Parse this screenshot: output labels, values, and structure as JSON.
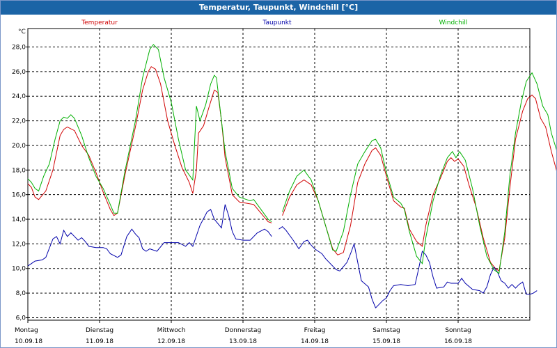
{
  "window": {
    "title": "Temperatur, Taupunkt, Windchill [°C]"
  },
  "chart_data": {
    "type": "line",
    "title": "Temperatur, Taupunkt, Windchill [°C]",
    "ylabel": "°C",
    "ylim": [
      5.8,
      29.5
    ],
    "yticks": [
      6,
      8,
      10,
      12,
      14,
      16,
      18,
      20,
      22,
      24,
      26,
      28
    ],
    "ytick_labels": [
      "6,0",
      "8,0",
      "10,0",
      "12,0",
      "14,0",
      "16,0",
      "18,0",
      "20,0",
      "22,0",
      "24,0",
      "26,0",
      "28,0"
    ],
    "xlim": [
      0,
      7
    ],
    "days": [
      {
        "day": "Montag",
        "date": "10.09.18"
      },
      {
        "day": "Dienstag",
        "date": "11.09.18"
      },
      {
        "day": "Mittwoch",
        "date": "12.09.18"
      },
      {
        "day": "Donnerstag",
        "date": "13.09.18"
      },
      {
        "day": "Freitag",
        "date": "14.09.18"
      },
      {
        "day": "Samstag",
        "date": "15.09.18"
      },
      {
        "day": "Sonntag",
        "date": "16.09.18"
      }
    ],
    "grid": true,
    "legend_placement": "top",
    "series": [
      {
        "name": "Temperatur",
        "color": "#d00000",
        "points": [
          [
            0.0,
            16.9
          ],
          [
            0.05,
            16.6
          ],
          [
            0.1,
            15.8
          ],
          [
            0.15,
            15.6
          ],
          [
            0.25,
            16.3
          ],
          [
            0.35,
            18.0
          ],
          [
            0.45,
            20.8
          ],
          [
            0.5,
            21.3
          ],
          [
            0.55,
            21.5
          ],
          [
            0.65,
            21.2
          ],
          [
            0.75,
            20.0
          ],
          [
            0.85,
            19.2
          ],
          [
            0.95,
            17.8
          ],
          [
            1.05,
            16.2
          ],
          [
            1.15,
            14.8
          ],
          [
            1.2,
            14.3
          ],
          [
            1.25,
            14.5
          ],
          [
            1.35,
            17.5
          ],
          [
            1.5,
            21.5
          ],
          [
            1.6,
            24.5
          ],
          [
            1.68,
            26.0
          ],
          [
            1.72,
            26.4
          ],
          [
            1.78,
            26.2
          ],
          [
            1.85,
            25.0
          ],
          [
            1.95,
            22.0
          ],
          [
            2.05,
            20.0
          ],
          [
            2.15,
            18.2
          ],
          [
            2.25,
            17.0
          ],
          [
            2.3,
            16.1
          ],
          [
            2.35,
            18.0
          ],
          [
            2.38,
            21.0
          ],
          [
            2.45,
            21.6
          ],
          [
            2.52,
            23.0
          ],
          [
            2.6,
            24.5
          ],
          [
            2.65,
            24.3
          ],
          [
            2.7,
            22.0
          ],
          [
            2.75,
            19.0
          ],
          [
            2.85,
            16.0
          ],
          [
            2.95,
            15.4
          ],
          [
            3.05,
            15.3
          ],
          [
            3.15,
            15.2
          ],
          [
            3.25,
            14.5
          ],
          [
            3.35,
            13.8
          ],
          [
            3.4,
            13.7
          ],
          null,
          [
            3.55,
            14.3
          ],
          [
            3.65,
            15.8
          ],
          [
            3.75,
            16.8
          ],
          [
            3.85,
            17.2
          ],
          [
            3.95,
            16.8
          ],
          [
            4.05,
            15.5
          ],
          [
            4.15,
            13.5
          ],
          [
            4.25,
            11.6
          ],
          [
            4.32,
            11.1
          ],
          [
            4.4,
            11.3
          ],
          [
            4.5,
            13.5
          ],
          [
            4.6,
            17.0
          ],
          [
            4.7,
            18.5
          ],
          [
            4.8,
            19.6
          ],
          [
            4.85,
            19.8
          ],
          [
            4.92,
            19.2
          ],
          [
            5.0,
            17.5
          ],
          [
            5.1,
            15.5
          ],
          [
            5.2,
            15.0
          ],
          [
            5.25,
            14.9
          ],
          [
            5.32,
            13.2
          ],
          [
            5.42,
            12.2
          ],
          [
            5.5,
            11.8
          ],
          [
            5.55,
            13.5
          ],
          [
            5.65,
            16.0
          ],
          [
            5.75,
            17.3
          ],
          [
            5.85,
            18.7
          ],
          [
            5.9,
            19.0
          ],
          [
            5.95,
            18.7
          ],
          [
            6.0,
            18.9
          ],
          [
            6.08,
            18.3
          ],
          [
            6.15,
            16.8
          ],
          [
            6.25,
            15.0
          ],
          [
            6.35,
            12.5
          ],
          [
            6.45,
            10.5
          ],
          [
            6.52,
            10.0
          ],
          [
            6.57,
            9.8
          ],
          [
            6.65,
            12.5
          ],
          [
            6.72,
            16.5
          ],
          [
            6.8,
            20.5
          ],
          [
            6.9,
            22.8
          ],
          [
            6.97,
            23.8
          ],
          [
            7.03,
            24.1
          ],
          [
            7.08,
            23.8
          ],
          [
            7.15,
            22.2
          ],
          [
            7.22,
            21.5
          ],
          [
            7.3,
            19.5
          ],
          [
            7.38,
            17.8
          ],
          [
            7.45,
            17.0
          ]
        ]
      },
      {
        "name": "Taupunkt",
        "color": "#0000aa",
        "points": [
          [
            0.0,
            10.2
          ],
          [
            0.05,
            10.4
          ],
          [
            0.1,
            10.6
          ],
          [
            0.2,
            10.7
          ],
          [
            0.25,
            10.9
          ],
          [
            0.35,
            12.4
          ],
          [
            0.4,
            12.6
          ],
          [
            0.45,
            12.0
          ],
          [
            0.5,
            13.1
          ],
          [
            0.55,
            12.6
          ],
          [
            0.6,
            12.9
          ],
          [
            0.65,
            12.6
          ],
          [
            0.7,
            12.3
          ],
          [
            0.75,
            12.5
          ],
          [
            0.8,
            12.2
          ],
          [
            0.85,
            11.8
          ],
          [
            0.95,
            11.7
          ],
          [
            1.05,
            11.7
          ],
          [
            1.1,
            11.6
          ],
          [
            1.15,
            11.2
          ],
          [
            1.25,
            10.9
          ],
          [
            1.3,
            11.1
          ],
          [
            1.38,
            12.6
          ],
          [
            1.45,
            13.2
          ],
          [
            1.5,
            12.8
          ],
          [
            1.55,
            12.5
          ],
          [
            1.6,
            11.6
          ],
          [
            1.65,
            11.4
          ],
          [
            1.7,
            11.6
          ],
          [
            1.8,
            11.4
          ],
          [
            1.9,
            12.1
          ],
          [
            2.0,
            12.1
          ],
          [
            2.1,
            12.1
          ],
          [
            2.2,
            11.8
          ],
          [
            2.25,
            12.1
          ],
          [
            2.3,
            11.8
          ],
          [
            2.4,
            13.5
          ],
          [
            2.5,
            14.6
          ],
          [
            2.55,
            14.8
          ],
          [
            2.6,
            14.0
          ],
          [
            2.7,
            13.3
          ],
          [
            2.75,
            15.2
          ],
          [
            2.8,
            14.3
          ],
          [
            2.85,
            13.0
          ],
          [
            2.9,
            12.4
          ],
          [
            3.0,
            12.3
          ],
          [
            3.1,
            12.3
          ],
          [
            3.2,
            12.9
          ],
          [
            3.3,
            13.2
          ],
          [
            3.35,
            13.0
          ],
          [
            3.4,
            12.6
          ],
          null,
          [
            3.5,
            13.2
          ],
          [
            3.55,
            13.4
          ],
          [
            3.6,
            13.1
          ],
          [
            3.7,
            12.3
          ],
          [
            3.78,
            11.6
          ],
          [
            3.85,
            12.2
          ],
          [
            3.9,
            12.3
          ],
          [
            3.95,
            11.9
          ],
          [
            4.0,
            11.6
          ],
          [
            4.05,
            11.4
          ],
          [
            4.1,
            11.2
          ],
          [
            4.15,
            10.8
          ],
          [
            4.25,
            10.2
          ],
          [
            4.3,
            9.9
          ],
          [
            4.35,
            9.8
          ],
          [
            4.45,
            10.5
          ],
          [
            4.5,
            11.2
          ],
          [
            4.55,
            12.0
          ],
          [
            4.6,
            10.5
          ],
          [
            4.65,
            9.0
          ],
          [
            4.75,
            8.5
          ],
          [
            4.8,
            7.5
          ],
          [
            4.85,
            6.8
          ],
          [
            4.95,
            7.4
          ],
          [
            5.0,
            7.6
          ],
          [
            5.05,
            8.2
          ],
          [
            5.1,
            8.6
          ],
          [
            5.2,
            8.7
          ],
          [
            5.3,
            8.6
          ],
          [
            5.4,
            8.7
          ],
          [
            5.45,
            10.0
          ],
          [
            5.5,
            11.4
          ],
          [
            5.55,
            11.1
          ],
          [
            5.6,
            10.5
          ],
          [
            5.65,
            9.3
          ],
          [
            5.7,
            8.4
          ],
          [
            5.8,
            8.5
          ],
          [
            5.85,
            8.9
          ],
          [
            5.9,
            8.8
          ],
          [
            6.0,
            8.8
          ],
          [
            6.05,
            9.2
          ],
          [
            6.1,
            8.8
          ],
          [
            6.2,
            8.3
          ],
          [
            6.3,
            8.2
          ],
          [
            6.35,
            8.0
          ],
          [
            6.4,
            8.5
          ],
          [
            6.45,
            9.5
          ],
          [
            6.5,
            10.1
          ],
          [
            6.55,
            9.7
          ],
          [
            6.6,
            9.0
          ],
          [
            6.65,
            8.8
          ],
          [
            6.7,
            8.4
          ],
          [
            6.75,
            8.7
          ],
          [
            6.8,
            8.4
          ],
          [
            6.85,
            8.7
          ],
          [
            6.9,
            8.9
          ],
          [
            6.95,
            7.9
          ],
          [
            7.0,
            7.9
          ],
          [
            7.05,
            8.0
          ],
          [
            7.1,
            8.2
          ]
        ]
      },
      {
        "name": "Windchill",
        "color": "#00b000",
        "points": [
          [
            0.0,
            17.3
          ],
          [
            0.05,
            17.0
          ],
          [
            0.1,
            16.5
          ],
          [
            0.15,
            16.3
          ],
          [
            0.22,
            17.5
          ],
          [
            0.3,
            18.5
          ],
          [
            0.38,
            20.5
          ],
          [
            0.45,
            22.0
          ],
          [
            0.5,
            22.3
          ],
          [
            0.55,
            22.2
          ],
          [
            0.6,
            22.5
          ],
          [
            0.65,
            22.2
          ],
          [
            0.75,
            20.8
          ],
          [
            0.85,
            19.0
          ],
          [
            0.95,
            17.5
          ],
          [
            1.05,
            16.5
          ],
          [
            1.15,
            15.2
          ],
          [
            1.2,
            14.5
          ],
          [
            1.25,
            14.5
          ],
          [
            1.35,
            17.8
          ],
          [
            1.5,
            22.0
          ],
          [
            1.6,
            25.5
          ],
          [
            1.7,
            27.8
          ],
          [
            1.75,
            28.2
          ],
          [
            1.82,
            27.8
          ],
          [
            1.9,
            25.5
          ],
          [
            2.0,
            23.5
          ],
          [
            2.1,
            20.5
          ],
          [
            2.2,
            18.0
          ],
          [
            2.3,
            17.2
          ],
          [
            2.35,
            23.2
          ],
          [
            2.4,
            22.0
          ],
          [
            2.48,
            23.3
          ],
          [
            2.55,
            25.0
          ],
          [
            2.6,
            25.7
          ],
          [
            2.63,
            25.5
          ],
          [
            2.7,
            22.0
          ],
          [
            2.75,
            19.5
          ],
          [
            2.85,
            16.5
          ],
          [
            2.95,
            15.8
          ],
          [
            3.05,
            15.6
          ],
          [
            3.1,
            15.5
          ],
          [
            3.15,
            15.6
          ],
          [
            3.25,
            14.8
          ],
          [
            3.35,
            14.0
          ],
          [
            3.4,
            13.8
          ],
          null,
          [
            3.55,
            14.6
          ],
          [
            3.65,
            16.3
          ],
          [
            3.75,
            17.5
          ],
          [
            3.85,
            18.0
          ],
          [
            3.95,
            17.2
          ],
          [
            4.05,
            15.5
          ],
          [
            4.15,
            13.5
          ],
          [
            4.25,
            11.5
          ],
          [
            4.3,
            11.4
          ],
          [
            4.4,
            13.0
          ],
          [
            4.5,
            16.0
          ],
          [
            4.6,
            18.5
          ],
          [
            4.7,
            19.5
          ],
          [
            4.8,
            20.4
          ],
          [
            4.85,
            20.5
          ],
          [
            4.92,
            19.8
          ],
          [
            5.0,
            17.8
          ],
          [
            5.1,
            15.8
          ],
          [
            5.2,
            15.3
          ],
          [
            5.25,
            14.8
          ],
          [
            5.32,
            13.0
          ],
          [
            5.42,
            11.0
          ],
          [
            5.5,
            10.4
          ],
          [
            5.55,
            12.5
          ],
          [
            5.65,
            15.5
          ],
          [
            5.75,
            17.5
          ],
          [
            5.85,
            19.0
          ],
          [
            5.92,
            19.5
          ],
          [
            5.97,
            19.0
          ],
          [
            6.02,
            19.5
          ],
          [
            6.1,
            18.8
          ],
          [
            6.2,
            16.5
          ],
          [
            6.3,
            13.5
          ],
          [
            6.4,
            11.0
          ],
          [
            6.5,
            9.9
          ],
          [
            6.57,
            9.6
          ],
          [
            6.65,
            13.0
          ],
          [
            6.72,
            17.5
          ],
          [
            6.8,
            21.0
          ],
          [
            6.88,
            23.5
          ],
          [
            6.95,
            25.2
          ],
          [
            7.03,
            25.9
          ],
          [
            7.1,
            25.0
          ],
          [
            7.18,
            23.2
          ],
          [
            7.25,
            22.5
          ],
          [
            7.3,
            21.0
          ],
          [
            7.38,
            19.5
          ],
          [
            7.45,
            18.4
          ]
        ]
      }
    ]
  }
}
